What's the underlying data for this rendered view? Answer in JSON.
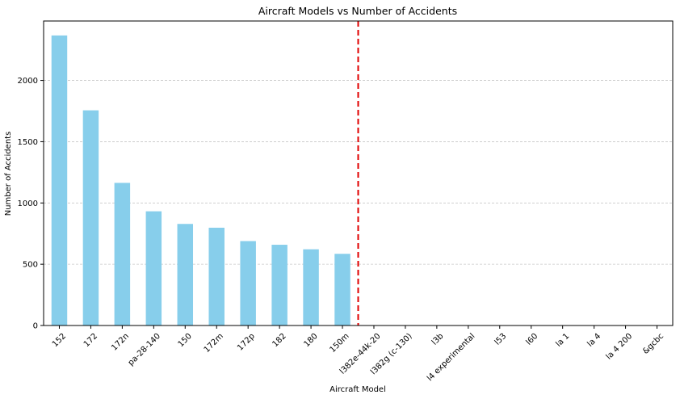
{
  "chart_data": {
    "type": "bar",
    "title": "Aircraft Models vs Number of Accidents",
    "xlabel": "Aircraft Model",
    "ylabel": "Number of Accidents",
    "categories": [
      "152",
      "172",
      "172n",
      "pa-28-140",
      "150",
      "172m",
      "172p",
      "182",
      "180",
      "150m",
      "l382e-44k-20",
      "l382g (c-130)",
      "l3b",
      "l4 experimental",
      "l53",
      "l60",
      "la 1",
      "la 4",
      "la 4 200",
      "&gcbc"
    ],
    "values": [
      2367,
      1756,
      1164,
      932,
      829,
      798,
      689,
      659,
      622,
      585,
      1,
      1,
      1,
      1,
      1,
      1,
      1,
      1,
      1,
      1
    ],
    "ylim": [
      0,
      2485
    ],
    "yticks": [
      0,
      500,
      1000,
      1500,
      2000
    ],
    "grid": "y-dashed",
    "divider_after_index": 9,
    "bar_color": "#87ceeb",
    "divider_color": "#e00000",
    "grid_color": "#c8c8c8"
  }
}
